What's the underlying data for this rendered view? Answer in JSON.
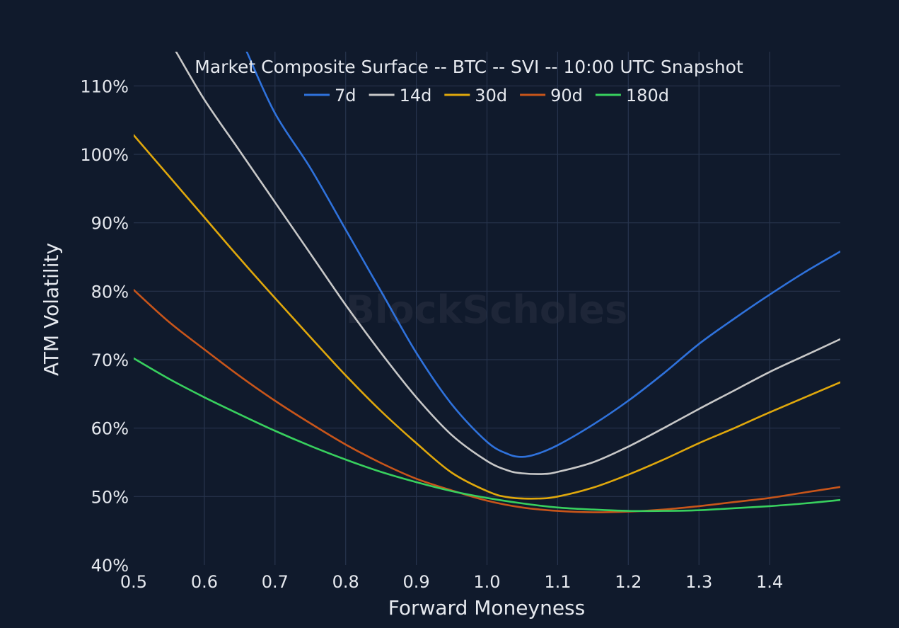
{
  "chart_data": {
    "type": "line",
    "title": "Market Composite Surface -- BTC -- SVI -- 10:00 UTC Snapshot",
    "xlabel": "Forward Moneyness",
    "ylabel": "ATM Volatility",
    "xlim": [
      0.5,
      1.5
    ],
    "ylim": [
      40,
      115
    ],
    "xticks": [
      0.5,
      0.6,
      0.7,
      0.8,
      0.9,
      1.0,
      1.1,
      1.2,
      1.3,
      1.4
    ],
    "xtick_labels": [
      "0.5",
      "0.6",
      "0.7",
      "0.8",
      "0.9",
      "1.0",
      "1.1",
      "1.2",
      "1.3",
      "1.4"
    ],
    "yticks": [
      40,
      50,
      60,
      70,
      80,
      90,
      100,
      110
    ],
    "ytick_labels": [
      "40%",
      "50%",
      "60%",
      "70%",
      "80%",
      "90%",
      "100%",
      "110%"
    ],
    "grid": true,
    "legend_position": "top-center",
    "watermark": "BlockScholes",
    "series": [
      {
        "name": "7d",
        "color": "#2f72dc",
        "points": [
          [
            0.66,
            115
          ],
          [
            0.7,
            106
          ],
          [
            0.75,
            98
          ],
          [
            0.8,
            89
          ],
          [
            0.85,
            80
          ],
          [
            0.9,
            71
          ],
          [
            0.95,
            63.5
          ],
          [
            1.0,
            58
          ],
          [
            1.03,
            56.2
          ],
          [
            1.05,
            55.8
          ],
          [
            1.07,
            56.2
          ],
          [
            1.1,
            57.5
          ],
          [
            1.15,
            60.5
          ],
          [
            1.2,
            64
          ],
          [
            1.25,
            68
          ],
          [
            1.3,
            72.3
          ],
          [
            1.35,
            76
          ],
          [
            1.4,
            79.5
          ],
          [
            1.45,
            82.8
          ],
          [
            1.5,
            85.8
          ]
        ]
      },
      {
        "name": "14d",
        "color": "#c8c8c8",
        "points": [
          [
            0.56,
            115
          ],
          [
            0.6,
            108
          ],
          [
            0.65,
            100.5
          ],
          [
            0.7,
            93
          ],
          [
            0.75,
            85.5
          ],
          [
            0.8,
            78
          ],
          [
            0.85,
            71
          ],
          [
            0.9,
            64.5
          ],
          [
            0.95,
            59
          ],
          [
            1.0,
            55.2
          ],
          [
            1.03,
            53.8
          ],
          [
            1.05,
            53.4
          ],
          [
            1.08,
            53.3
          ],
          [
            1.1,
            53.6
          ],
          [
            1.15,
            55
          ],
          [
            1.2,
            57.3
          ],
          [
            1.25,
            60
          ],
          [
            1.3,
            62.8
          ],
          [
            1.35,
            65.5
          ],
          [
            1.4,
            68.2
          ],
          [
            1.45,
            70.6
          ],
          [
            1.5,
            73
          ]
        ]
      },
      {
        "name": "30d",
        "color": "#e0a80c",
        "points": [
          [
            0.5,
            102.8
          ],
          [
            0.55,
            96.8
          ],
          [
            0.6,
            90.8
          ],
          [
            0.65,
            84.8
          ],
          [
            0.7,
            79
          ],
          [
            0.75,
            73.3
          ],
          [
            0.8,
            67.7
          ],
          [
            0.85,
            62.5
          ],
          [
            0.9,
            57.8
          ],
          [
            0.95,
            53.5
          ],
          [
            1.0,
            50.8
          ],
          [
            1.03,
            49.9
          ],
          [
            1.07,
            49.7
          ],
          [
            1.1,
            50
          ],
          [
            1.15,
            51.3
          ],
          [
            1.2,
            53.2
          ],
          [
            1.25,
            55.4
          ],
          [
            1.3,
            57.8
          ],
          [
            1.35,
            60
          ],
          [
            1.4,
            62.3
          ],
          [
            1.45,
            64.5
          ],
          [
            1.5,
            66.7
          ]
        ]
      },
      {
        "name": "90d",
        "color": "#c8551a",
        "points": [
          [
            0.5,
            80.2
          ],
          [
            0.55,
            75.5
          ],
          [
            0.6,
            71.5
          ],
          [
            0.65,
            67.6
          ],
          [
            0.7,
            64
          ],
          [
            0.75,
            60.7
          ],
          [
            0.8,
            57.6
          ],
          [
            0.85,
            54.9
          ],
          [
            0.9,
            52.6
          ],
          [
            0.95,
            50.9
          ],
          [
            1.0,
            49.4
          ],
          [
            1.05,
            48.4
          ],
          [
            1.1,
            47.9
          ],
          [
            1.15,
            47.7
          ],
          [
            1.2,
            47.8
          ],
          [
            1.25,
            48.1
          ],
          [
            1.3,
            48.6
          ],
          [
            1.35,
            49.2
          ],
          [
            1.4,
            49.8
          ],
          [
            1.45,
            50.6
          ],
          [
            1.5,
            51.4
          ]
        ]
      },
      {
        "name": "180d",
        "color": "#38d05e",
        "points": [
          [
            0.5,
            70.2
          ],
          [
            0.55,
            67.2
          ],
          [
            0.6,
            64.5
          ],
          [
            0.65,
            62
          ],
          [
            0.7,
            59.6
          ],
          [
            0.75,
            57.4
          ],
          [
            0.8,
            55.4
          ],
          [
            0.85,
            53.6
          ],
          [
            0.9,
            52.1
          ],
          [
            0.95,
            50.8
          ],
          [
            1.0,
            49.8
          ],
          [
            1.05,
            49
          ],
          [
            1.1,
            48.4
          ],
          [
            1.15,
            48.1
          ],
          [
            1.2,
            47.9
          ],
          [
            1.25,
            47.9
          ],
          [
            1.3,
            48
          ],
          [
            1.35,
            48.3
          ],
          [
            1.4,
            48.6
          ],
          [
            1.45,
            49
          ],
          [
            1.5,
            49.5
          ]
        ]
      }
    ]
  }
}
